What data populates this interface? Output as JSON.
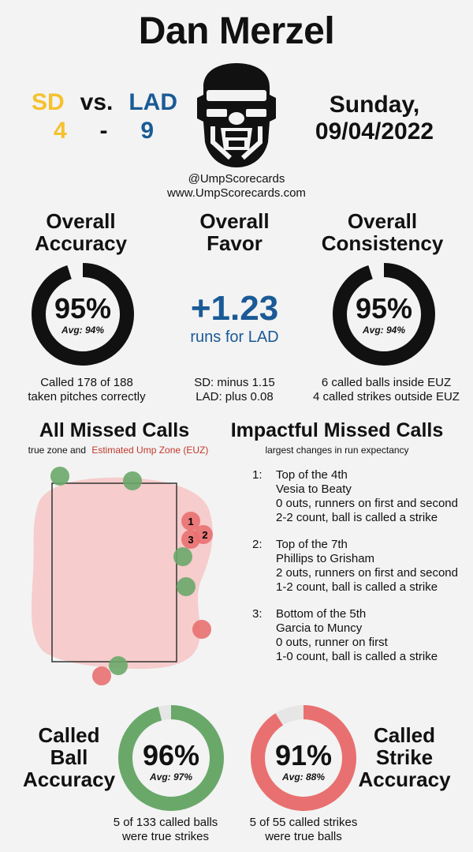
{
  "umpire_name": "Dan Merzel",
  "game": {
    "away_team": "SD",
    "home_team": "LAD",
    "vs_label": "vs.",
    "away_score": "4",
    "dash": "-",
    "home_score": "9",
    "date_line1": "Sunday,",
    "date_line2": "09/04/2022",
    "colors": {
      "away": "#f5c12e",
      "home": "#1a5a96"
    }
  },
  "social": {
    "handle": "@UmpScorecards",
    "website": "www.UmpScorecards.com"
  },
  "overall_accuracy": {
    "title_line1": "Overall",
    "title_line2": "Accuracy",
    "value": "95%",
    "fraction": 0.95,
    "avg": "Avg: 94%",
    "caption_line1": "Called 178 of 188",
    "caption_line2": "taken pitches correctly"
  },
  "overall_favor": {
    "title_line1": "Overall",
    "title_line2": "Favor",
    "value": "+1.23",
    "unit": "runs for LAD",
    "caption_line1": "SD: minus 1.15",
    "caption_line2": "LAD: plus 0.08"
  },
  "overall_consistency": {
    "title_line1": "Overall",
    "title_line2": "Consistency",
    "value": "95%",
    "fraction": 0.95,
    "avg": "Avg: 94%",
    "caption_line1": "6 called balls inside EUZ",
    "caption_line2": "4 called strikes outside EUZ"
  },
  "all_missed": {
    "title": "All Missed Calls",
    "legend_true": "true zone and",
    "legend_euz": "Estimated Ump Zone (EUZ)"
  },
  "impactful": {
    "title": "Impactful Missed Calls",
    "subtitle": "largest changes in run expectancy",
    "items": [
      {
        "num": "1:",
        "inning": "Top of the 4th",
        "matchup": "Vesia to Beaty",
        "situation": "0 outs, runners on first and second",
        "call": "2-2 count, ball is called a strike"
      },
      {
        "num": "2:",
        "inning": "Top of the 7th",
        "matchup": "Phillips to Grisham",
        "situation": "2 outs, runners on first and second",
        "call": "1-2 count, ball is called a strike"
      },
      {
        "num": "3:",
        "inning": "Bottom of the 5th",
        "matchup": "Garcia to Muncy",
        "situation": "0 outs, runner on first",
        "call": "1-0 count, ball is called a strike"
      }
    ]
  },
  "called_ball": {
    "label_line1": "Called",
    "label_line2": "Ball",
    "label_line3": "Accuracy",
    "value": "96%",
    "fraction": 0.96,
    "avg": "Avg: 97%",
    "caption_line1": "5 of 133 called balls",
    "caption_line2": "were true strikes"
  },
  "called_strike": {
    "label_line1": "Called",
    "label_line2": "Strike",
    "label_line3": "Accuracy",
    "value": "91%",
    "fraction": 0.91,
    "avg": "Avg: 88%",
    "caption_line1": "5 of 55 called strikes",
    "caption_line2": "were true balls"
  },
  "zone_marks": {
    "pitch_number_labels": [
      "1",
      "2",
      "3"
    ]
  },
  "colors": {
    "ring_dark": "#111111",
    "ring_track": "#e6e6e6",
    "ball_green": "#6aa86a",
    "strike_red": "#e97070",
    "euz_fill": "#f6cccc",
    "euz_text": "#c0392b",
    "favor_blue": "#1a5a96"
  }
}
